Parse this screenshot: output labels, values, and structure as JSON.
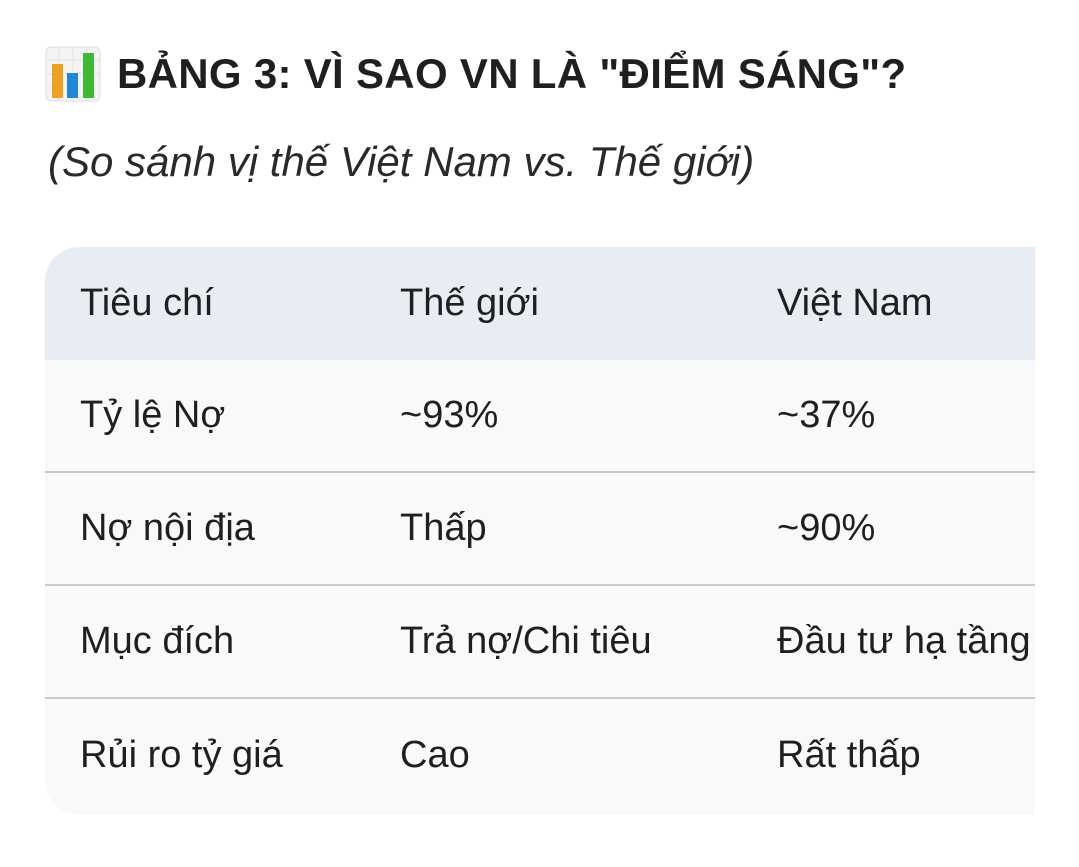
{
  "title": {
    "icon": "bar-chart-icon",
    "text": "BẢNG 3: VÌ SAO VN LÀ \"ĐIỂM SÁNG\"?"
  },
  "subtitle": "(So sánh vị thế Việt Nam vs. Thế giới)",
  "table": {
    "headers": [
      "Tiêu chí",
      "Thế giới",
      "Việt Nam"
    ],
    "rows": [
      [
        "Tỷ lệ Nợ",
        "~93%",
        "~37%"
      ],
      [
        "Nợ nội địa",
        "Thấp",
        "~90%"
      ],
      [
        "Mục đích",
        "Trả nợ/Chi tiêu",
        "Đầu tư hạ tầng"
      ],
      [
        "Rủi ro tỷ giá",
        "Cao",
        "Rất thấp"
      ]
    ]
  },
  "colors": {
    "header_bg": "#e8edf4",
    "row_bg": "#f8f9fb",
    "divider": "#c9c9c9"
  }
}
